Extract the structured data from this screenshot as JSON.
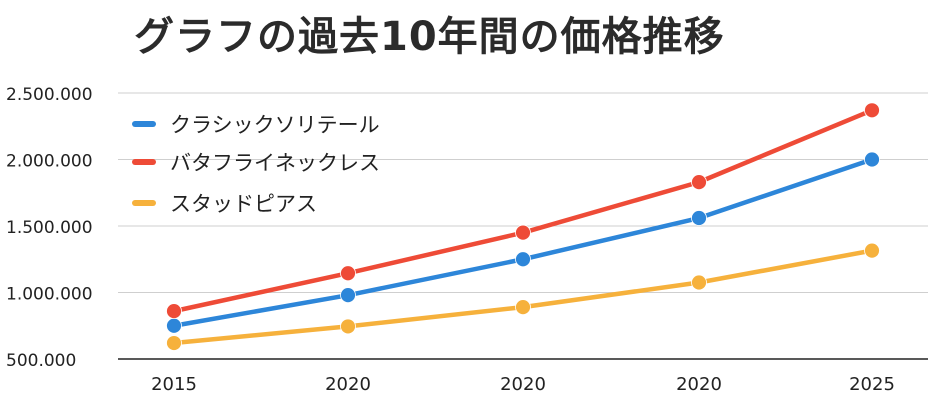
{
  "chart_data": {
    "type": "line",
    "title": "グラフの過去10年間の価格推移",
    "xlabel": "",
    "ylabel": "",
    "categories": [
      "2015",
      "2020",
      "2020",
      "2020",
      "2025"
    ],
    "y_ticks": [
      "500.000",
      "1.000.000",
      "1.500.000",
      "2.000.000",
      "2.500.000"
    ],
    "ylim": [
      500000,
      2500000
    ],
    "grid": true,
    "legend_position": "top-left",
    "series": [
      {
        "name": "クラシックソリテール",
        "color": "#2d86d9",
        "values": [
          750000,
          980000,
          1250000,
          1560000,
          2000000
        ]
      },
      {
        "name": "バタフライネックレス",
        "color": "#ee4b37",
        "values": [
          860000,
          1145000,
          1450000,
          1830000,
          2370000
        ]
      },
      {
        "name": "スタッドピアス",
        "color": "#f6b13c",
        "values": [
          620000,
          745000,
          890000,
          1075000,
          1315000
        ]
      }
    ]
  }
}
